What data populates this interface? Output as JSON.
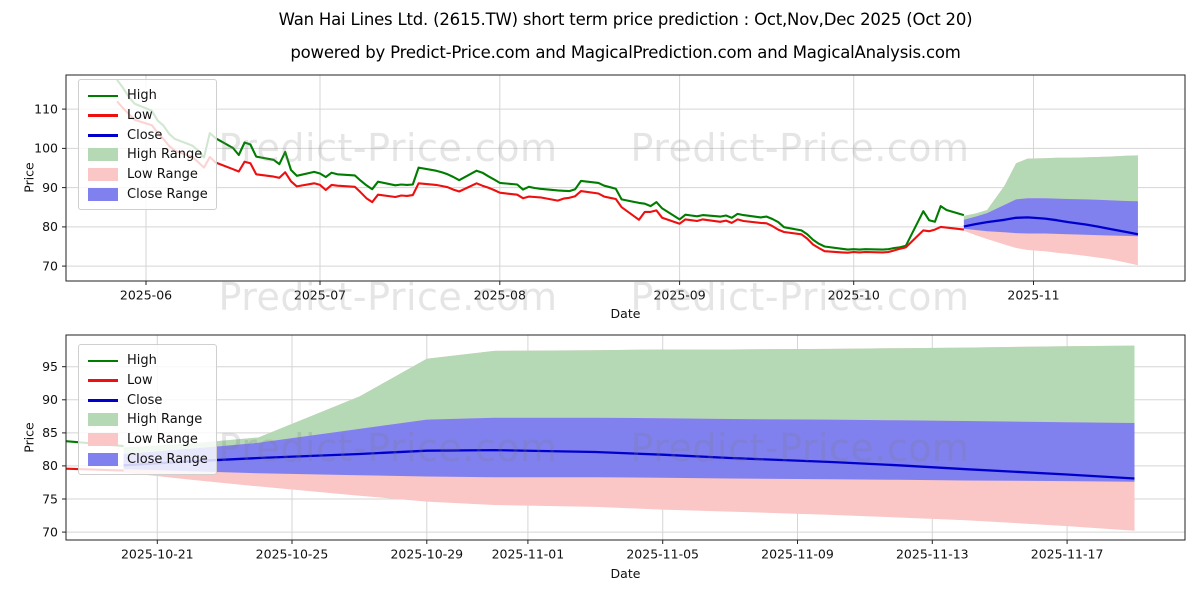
{
  "title": "Wan Hai Lines Ltd. (2615.TW) short term price prediction : Oct,Nov,Dec 2025 (Oct 20)",
  "subtitle": "powered by Predict-Price.com and MagicalPrediction.com and MagicalAnalysis.com",
  "watermark": {
    "text": "Predict-Price.com",
    "color": "rgba(125,125,125,0.20)"
  },
  "chart_data": {
    "type": "line",
    "grid": true,
    "legend_position": "upper left",
    "series_colors": {
      "high": "#007d00",
      "low": "#ee0f0f",
      "close": "#0000cc",
      "high_range": "#b5d8b5",
      "low_range": "#fac6c6",
      "close_range": "#8080ee"
    },
    "legend": [
      {
        "label": "High",
        "type": "line",
        "color": "#007d00"
      },
      {
        "label": "Low",
        "type": "line",
        "color": "#ee0f0f"
      },
      {
        "label": "Close",
        "type": "line",
        "color": "#0000cc"
      },
      {
        "label": "High Range",
        "type": "patch",
        "color": "#b5d8b5"
      },
      {
        "label": "Low Range",
        "type": "patch",
        "color": "#fac6c6"
      },
      {
        "label": "Close Range",
        "type": "patch",
        "color": "#8080ee"
      }
    ],
    "historical_ohlc_note": "rows are [date, high, low]",
    "historical": [
      [
        "2025-05-27",
        117.5,
        112.0
      ],
      [
        "2025-05-28",
        115.5,
        110.3
      ],
      [
        "2025-05-29",
        113.2,
        108.8
      ],
      [
        "2025-05-30",
        111.4,
        107.3
      ],
      [
        "2025-06-02",
        109.6,
        105.9
      ],
      [
        "2025-06-03",
        107.1,
        104.0
      ],
      [
        "2025-06-04",
        105.8,
        102.4
      ],
      [
        "2025-06-05",
        103.7,
        100.6
      ],
      [
        "2025-06-06",
        102.4,
        99.4
      ],
      [
        "2025-06-09",
        100.7,
        97.8
      ],
      [
        "2025-06-10",
        99.4,
        96.5
      ],
      [
        "2025-06-11",
        97.7,
        95.1
      ],
      [
        "2025-06-12",
        103.9,
        97.8
      ],
      [
        "2025-06-13",
        102.6,
        96.4
      ],
      [
        "2025-06-16",
        100.1,
        94.7
      ],
      [
        "2025-06-17",
        98.3,
        94.1
      ],
      [
        "2025-06-18",
        101.5,
        96.6
      ],
      [
        "2025-06-19",
        101.0,
        96.2
      ],
      [
        "2025-06-20",
        97.9,
        93.4
      ],
      [
        "2025-06-23",
        97.1,
        92.8
      ],
      [
        "2025-06-24",
        96.0,
        92.5
      ],
      [
        "2025-06-25",
        99.1,
        93.9
      ],
      [
        "2025-06-26",
        94.5,
        91.6
      ],
      [
        "2025-06-27",
        93.0,
        90.3
      ],
      [
        "2025-06-30",
        94.0,
        91.1
      ],
      [
        "2025-07-01",
        93.6,
        90.7
      ],
      [
        "2025-07-02",
        92.7,
        89.4
      ],
      [
        "2025-07-03",
        93.8,
        90.7
      ],
      [
        "2025-07-04",
        93.4,
        90.5
      ],
      [
        "2025-07-07",
        93.1,
        90.2
      ],
      [
        "2025-07-08",
        91.8,
        88.8
      ],
      [
        "2025-07-09",
        90.6,
        87.3
      ],
      [
        "2025-07-10",
        89.6,
        86.3
      ],
      [
        "2025-07-11",
        91.5,
        88.2
      ],
      [
        "2025-07-14",
        90.6,
        87.6
      ],
      [
        "2025-07-15",
        90.8,
        88.0
      ],
      [
        "2025-07-16",
        90.7,
        87.9
      ],
      [
        "2025-07-17",
        90.8,
        88.1
      ],
      [
        "2025-07-18",
        95.1,
        91.1
      ],
      [
        "2025-07-21",
        94.3,
        90.7
      ],
      [
        "2025-07-22",
        93.9,
        90.4
      ],
      [
        "2025-07-23",
        93.4,
        90.1
      ],
      [
        "2025-07-24",
        92.7,
        89.5
      ],
      [
        "2025-07-25",
        91.9,
        89.0
      ],
      [
        "2025-07-28",
        94.3,
        91.1
      ],
      [
        "2025-07-29",
        93.8,
        90.5
      ],
      [
        "2025-07-30",
        92.9,
        90.0
      ],
      [
        "2025-07-31",
        92.1,
        89.4
      ],
      [
        "2025-08-01",
        91.2,
        88.7
      ],
      [
        "2025-08-04",
        90.8,
        88.2
      ],
      [
        "2025-08-05",
        89.5,
        87.3
      ],
      [
        "2025-08-06",
        90.2,
        87.7
      ],
      [
        "2025-08-07",
        89.9,
        87.6
      ],
      [
        "2025-08-08",
        89.7,
        87.5
      ],
      [
        "2025-08-11",
        89.3,
        86.7
      ],
      [
        "2025-08-12",
        89.2,
        87.2
      ],
      [
        "2025-08-13",
        89.1,
        87.4
      ],
      [
        "2025-08-14",
        89.6,
        87.8
      ],
      [
        "2025-08-15",
        91.7,
        89.1
      ],
      [
        "2025-08-18",
        91.2,
        88.5
      ],
      [
        "2025-08-19",
        90.5,
        87.7
      ],
      [
        "2025-08-20",
        90.1,
        87.4
      ],
      [
        "2025-08-21",
        89.7,
        87.1
      ],
      [
        "2025-08-22",
        87.0,
        85.0
      ],
      [
        "2025-08-25",
        86.1,
        81.8
      ],
      [
        "2025-08-26",
        85.9,
        83.8
      ],
      [
        "2025-08-27",
        85.3,
        83.8
      ],
      [
        "2025-08-28",
        86.3,
        84.2
      ],
      [
        "2025-08-29",
        84.7,
        82.3
      ],
      [
        "2025-09-01",
        81.9,
        80.8
      ],
      [
        "2025-09-02",
        83.1,
        81.9
      ],
      [
        "2025-09-03",
        82.9,
        81.7
      ],
      [
        "2025-09-04",
        82.7,
        81.5
      ],
      [
        "2025-09-05",
        83.0,
        81.9
      ],
      [
        "2025-09-08",
        82.6,
        81.3
      ],
      [
        "2025-09-09",
        82.9,
        81.6
      ],
      [
        "2025-09-10",
        82.3,
        81.0
      ],
      [
        "2025-09-11",
        83.3,
        81.9
      ],
      [
        "2025-09-12",
        83.0,
        81.5
      ],
      [
        "2025-09-15",
        82.4,
        81.0
      ],
      [
        "2025-09-16",
        82.6,
        80.9
      ],
      [
        "2025-09-17",
        82.0,
        80.2
      ],
      [
        "2025-09-18",
        81.2,
        79.3
      ],
      [
        "2025-09-19",
        79.9,
        78.7
      ],
      [
        "2025-09-22",
        79.1,
        78.1
      ],
      [
        "2025-09-23",
        78.1,
        77.0
      ],
      [
        "2025-09-24",
        76.7,
        75.5
      ],
      [
        "2025-09-25",
        75.7,
        74.6
      ],
      [
        "2025-09-26",
        75.0,
        73.8
      ],
      [
        "2025-09-29",
        74.4,
        73.5
      ],
      [
        "2025-09-30",
        74.2,
        73.4
      ],
      [
        "2025-10-01",
        74.3,
        73.6
      ],
      [
        "2025-10-02",
        74.2,
        73.5
      ],
      [
        "2025-10-03",
        74.3,
        73.6
      ],
      [
        "2025-10-06",
        74.2,
        73.5
      ],
      [
        "2025-10-07",
        74.3,
        73.6
      ],
      [
        "2025-10-08",
        74.6,
        74.0
      ],
      [
        "2025-10-09",
        74.8,
        74.4
      ],
      [
        "2025-10-10",
        75.2,
        74.8
      ],
      [
        "2025-10-13",
        84.0,
        79.1
      ],
      [
        "2025-10-14",
        81.7,
        78.9
      ],
      [
        "2025-10-15",
        81.3,
        79.3
      ],
      [
        "2025-10-16",
        85.3,
        80.0
      ],
      [
        "2025-10-17",
        84.3,
        79.8
      ],
      [
        "2025-10-20",
        83.0,
        79.3
      ]
    ],
    "prediction_note": "rows are [date, close, high_range_top, close_range_top, close_range_bottom, low_range_bottom]",
    "prediction": [
      [
        "2025-10-20",
        80.1,
        82.8,
        81.8,
        79.5,
        79.0
      ],
      [
        "2025-10-22",
        80.7,
        83.4,
        82.6,
        79.2,
        77.9
      ],
      [
        "2025-10-24",
        81.2,
        84.3,
        83.5,
        78.9,
        76.9
      ],
      [
        "2025-10-27",
        81.8,
        90.5,
        85.6,
        78.6,
        75.5
      ],
      [
        "2025-10-29",
        82.3,
        96.2,
        87.0,
        78.4,
        74.6
      ],
      [
        "2025-10-31",
        82.4,
        97.4,
        87.3,
        78.3,
        74.1
      ],
      [
        "2025-11-03",
        82.1,
        97.5,
        87.3,
        78.3,
        73.8
      ],
      [
        "2025-11-05",
        81.7,
        97.6,
        87.2,
        78.2,
        73.4
      ],
      [
        "2025-11-07",
        81.2,
        97.6,
        87.1,
        78.1,
        73.1
      ],
      [
        "2025-11-10",
        80.6,
        97.7,
        87.0,
        78.0,
        72.6
      ],
      [
        "2025-11-12",
        80.1,
        97.8,
        86.9,
        77.9,
        72.2
      ],
      [
        "2025-11-14",
        79.5,
        97.9,
        86.8,
        77.8,
        71.8
      ],
      [
        "2025-11-17",
        78.7,
        98.1,
        86.6,
        77.7,
        70.9
      ],
      [
        "2025-11-19",
        78.1,
        98.2,
        86.5,
        77.6,
        70.2
      ]
    ],
    "charts": [
      {
        "name": "history_with_forecast",
        "xlabel": "Date",
        "ylabel": "Price",
        "xlim": [
          "2025-05-18T05:00:00Z",
          "2025-11-27T03:00:00Z"
        ],
        "ylim": [
          66.2,
          118.7
        ],
        "y_ticks": [
          70,
          80,
          90,
          100,
          110
        ],
        "x_ticks": [
          {
            "date": "2025-06-01",
            "label": "2025-06"
          },
          {
            "date": "2025-07-01",
            "label": "2025-07"
          },
          {
            "date": "2025-08-01",
            "label": "2025-08"
          },
          {
            "date": "2025-09-01",
            "label": "2025-09"
          },
          {
            "date": "2025-10-01",
            "label": "2025-10"
          },
          {
            "date": "2025-11-01",
            "label": "2025-11"
          }
        ],
        "show_historical": true
      },
      {
        "name": "forecast_detail",
        "xlabel": "Date",
        "ylabel": "Price",
        "xlim": [
          "2025-10-18T07:00:00Z",
          "2025-11-20T12:00:00Z"
        ],
        "ylim": [
          68.8,
          99.8
        ],
        "y_ticks": [
          70,
          75,
          80,
          85,
          90,
          95
        ],
        "x_ticks": [
          {
            "date": "2025-10-21",
            "label": "2025-10-21"
          },
          {
            "date": "2025-10-25",
            "label": "2025-10-25"
          },
          {
            "date": "2025-10-29",
            "label": "2025-10-29"
          },
          {
            "date": "2025-11-01",
            "label": "2025-11-01"
          },
          {
            "date": "2025-11-05",
            "label": "2025-11-05"
          },
          {
            "date": "2025-11-09",
            "label": "2025-11-09"
          },
          {
            "date": "2025-11-13",
            "label": "2025-11-13"
          },
          {
            "date": "2025-11-17",
            "label": "2025-11-17"
          }
        ],
        "show_historical": true
      }
    ]
  }
}
